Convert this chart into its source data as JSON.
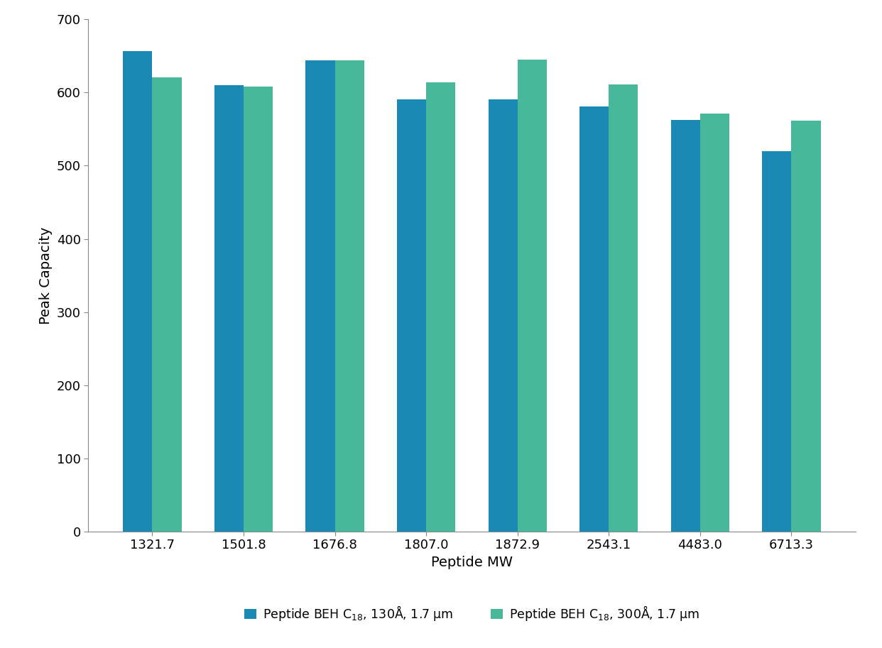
{
  "categories": [
    "1321.7",
    "1501.8",
    "1676.8",
    "1807.0",
    "1872.9",
    "2543.1",
    "4483.0",
    "6713.3"
  ],
  "series1_values": [
    657,
    610,
    644,
    591,
    591,
    581,
    563,
    520
  ],
  "series2_values": [
    621,
    608,
    644,
    614,
    645,
    611,
    571,
    562
  ],
  "series1_color": "#1a8ab5",
  "series2_color": "#47b899",
  "series1_label": "Peptide BEH C$_{18}$, 130Å, 1.7 µm",
  "series2_label": "Peptide BEH C$_{18}$, 300Å, 1.7 µm",
  "xlabel": "Peptide MW",
  "ylabel": "Peak Capacity",
  "ylim": [
    0,
    700
  ],
  "yticks": [
    0,
    100,
    200,
    300,
    400,
    500,
    600,
    700
  ],
  "background_color": "#ffffff",
  "bar_width": 0.32,
  "figsize": [
    12.42,
    9.13
  ],
  "dpi": 100,
  "tick_color": "#555555",
  "spine_color": "#888888",
  "label_fontsize": 14,
  "tick_fontsize": 13,
  "legend_fontsize": 12.5
}
